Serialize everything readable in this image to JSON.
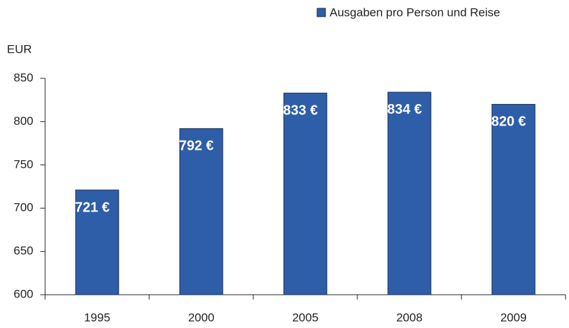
{
  "chart_data": {
    "type": "bar",
    "y_axis_label": "EUR",
    "categories": [
      "1995",
      "2000",
      "2005",
      "2008",
      "2009"
    ],
    "series": [
      {
        "name": "Ausgaben pro Person und Reise",
        "color": "#2e5ea8",
        "values": [
          721,
          792,
          833,
          834,
          820
        ],
        "value_labels": [
          "721 €",
          "792 €",
          "833 €",
          "834 €",
          "820 €"
        ]
      }
    ],
    "ylim": [
      600,
      850
    ],
    "yticks": [
      600,
      650,
      700,
      750,
      800,
      850
    ],
    "legend": "top-right"
  }
}
